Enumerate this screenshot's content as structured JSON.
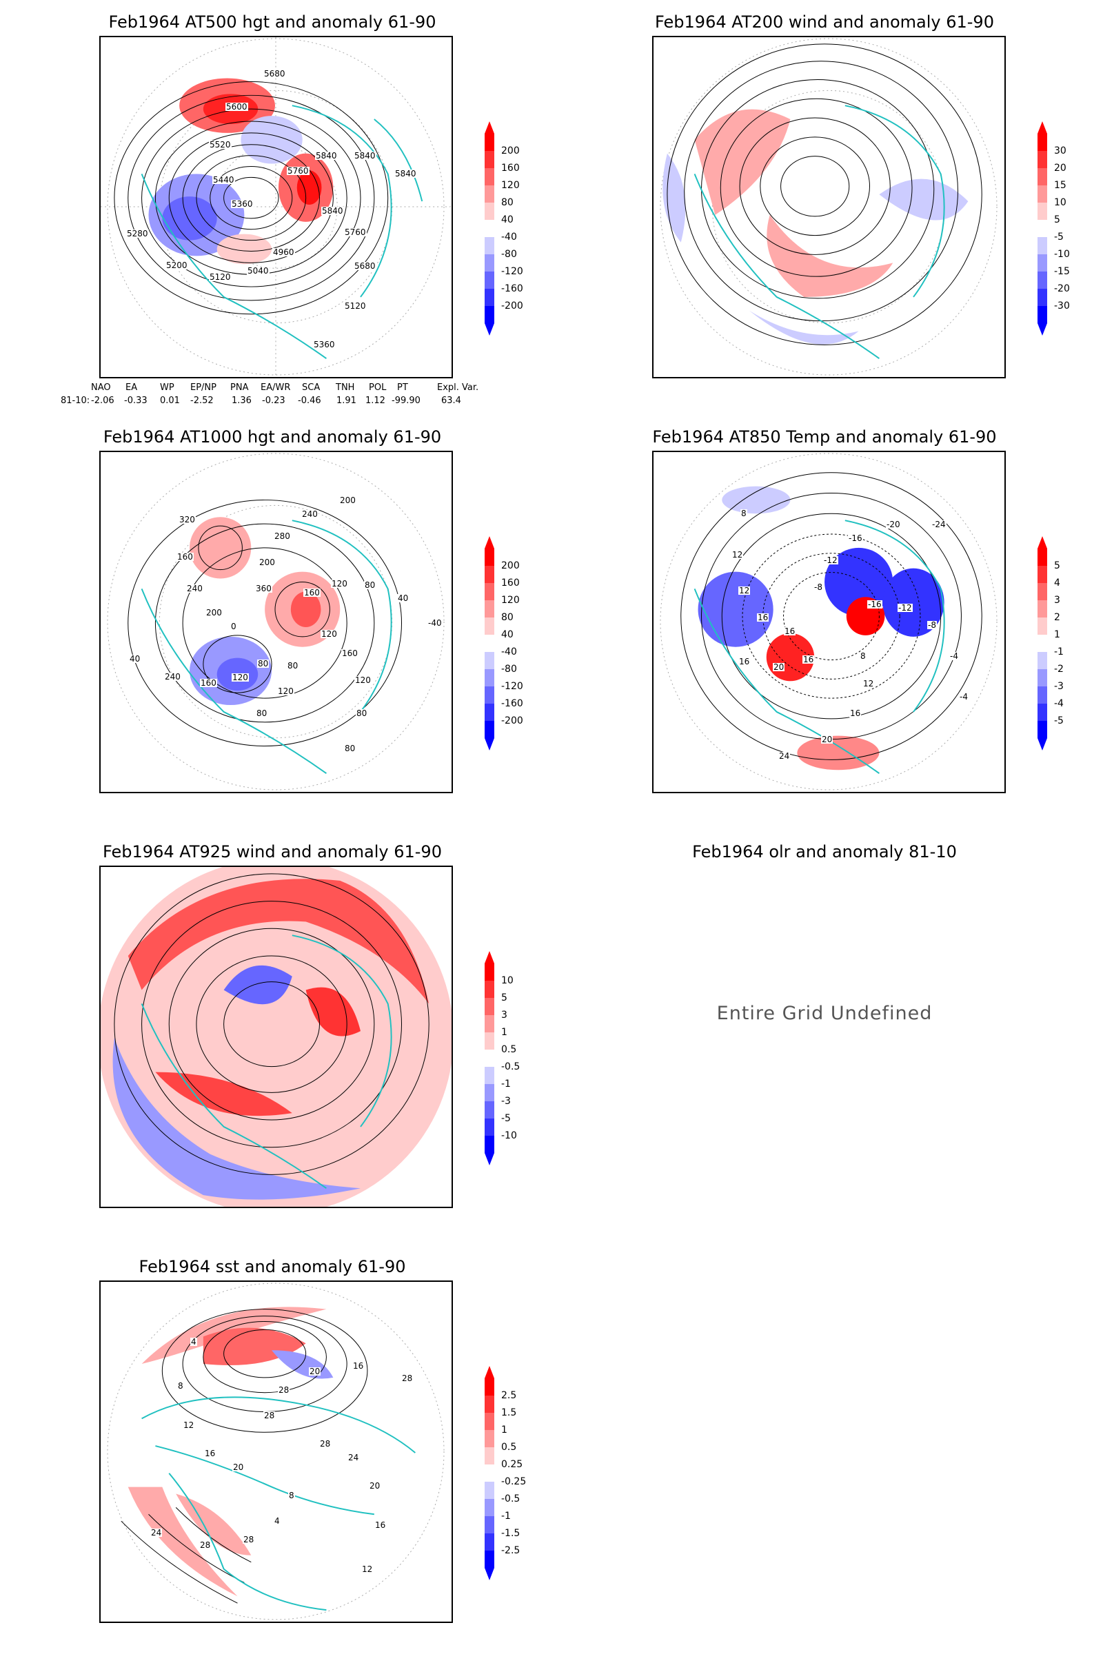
{
  "panels": [
    {
      "id": "p1",
      "title": "Feb1964 AT500 hgt and anomaly 61-90",
      "contour_labels": [
        "5840",
        "5760",
        "5680",
        "5120",
        "5360",
        "4960",
        "5040",
        "5120",
        "5200",
        "5280",
        "5360",
        "5440",
        "5520",
        "5600",
        "5680",
        "5760",
        "5840",
        "5840",
        "5840"
      ],
      "colorbar": [
        "200",
        "160",
        "120",
        "80",
        "40",
        "-40",
        "-80",
        "-120",
        "-160",
        "-200"
      ]
    },
    {
      "id": "p2",
      "title": "Feb1964 AT200 wind and anomaly 61-90",
      "contour_labels": [],
      "colorbar": [
        "30",
        "20",
        "15",
        "10",
        "5",
        "-5",
        "-10",
        "-15",
        "-20",
        "-30"
      ]
    },
    {
      "id": "p3",
      "title": "Feb1964 AT1000 hgt and anomaly 61-90",
      "contour_labels": [
        "80",
        "120",
        "160",
        "240",
        "40",
        "0",
        "200",
        "240",
        "160",
        "320",
        "360",
        "200",
        "280",
        "240",
        "200",
        "160",
        "120",
        "80",
        "40",
        "-40",
        "120",
        "160",
        "120",
        "80",
        "80",
        "80",
        "120",
        "80"
      ],
      "colorbar": [
        "200",
        "160",
        "120",
        "80",
        "40",
        "-40",
        "-80",
        "-120",
        "-160",
        "-200"
      ]
    },
    {
      "id": "p4",
      "title": "Feb1964 AT850 Temp and anomaly 61-90",
      "contour_labels": [
        "16",
        "16",
        "12",
        "12",
        "8",
        "-8",
        "-12",
        "-16",
        "-20",
        "-24",
        "-16",
        "-12",
        "-8",
        "-4",
        "-4",
        "8",
        "12",
        "16",
        "20",
        "24",
        "16",
        "20",
        "16"
      ],
      "colorbar": [
        "5",
        "4",
        "3",
        "2",
        "1",
        "-1",
        "-2",
        "-3",
        "-4",
        "-5"
      ]
    },
    {
      "id": "p5",
      "title": "Feb1964 AT925 wind and anomaly 61-90",
      "contour_labels": [],
      "colorbar": [
        "10",
        "5",
        "3",
        "1",
        "0.5",
        "-0.5",
        "-1",
        "-3",
        "-5",
        "-10"
      ]
    },
    {
      "id": "p6",
      "title": "Feb1964 olr and anomaly 81-10",
      "undefined_text": "Entire Grid Undefined"
    },
    {
      "id": "p7",
      "title": "Feb1964 sst and anomaly 61-90",
      "contour_labels": [
        "28",
        "24",
        "20",
        "16",
        "12",
        "8",
        "4",
        "28",
        "28",
        "24",
        "20",
        "16",
        "12",
        "8",
        "4",
        "28",
        "28",
        "20",
        "16",
        "28"
      ],
      "colorbar": [
        "2.5",
        "1.5",
        "1",
        "0.5",
        "0.25",
        "-0.25",
        "-0.5",
        "-1",
        "-1.5",
        "-2.5"
      ]
    }
  ],
  "teleconnections": {
    "headers": [
      "NAO",
      "EA",
      "WP",
      "EP/NP",
      "PNA",
      "EA/WR",
      "SCA",
      "TNH",
      "POL",
      "PT",
      "Expl. Var."
    ],
    "row_label": "81-10:",
    "values": [
      "-2.06",
      "-0.33",
      "0.01",
      "-2.52",
      "1.36",
      "-0.23",
      "-0.46",
      "1.91",
      "1.12",
      "-99.90",
      "63.4"
    ]
  },
  "colors": {
    "land_outline": "#20c0c0",
    "contour": "#000000",
    "pos_scale": [
      "#ff0000",
      "#ff3333",
      "#ff6666",
      "#ff9999",
      "#ffcccc"
    ],
    "neg_scale": [
      "#ccccff",
      "#9999ff",
      "#6666ff",
      "#3333ff",
      "#0000ff"
    ]
  }
}
